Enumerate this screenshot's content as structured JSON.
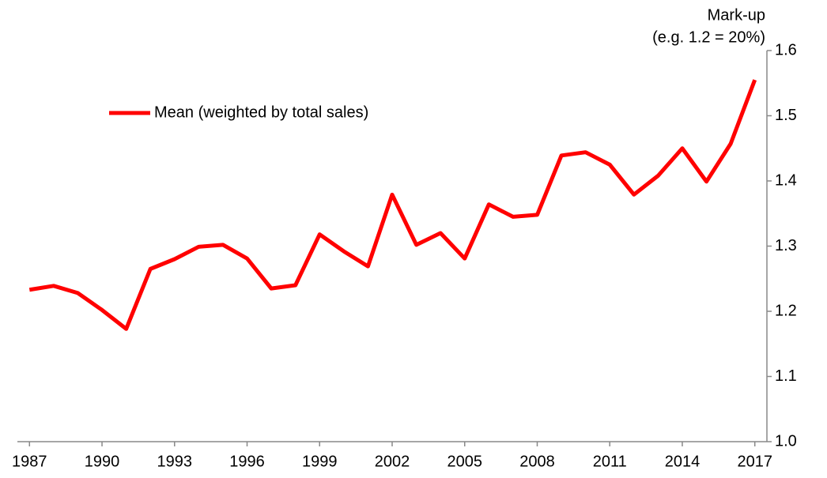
{
  "chart_data": {
    "type": "line",
    "ylabel": [
      "Mark-up",
      "(e.g. 1.2 = 20%)"
    ],
    "x": [
      1987,
      1988,
      1989,
      1990,
      1991,
      1992,
      1993,
      1994,
      1995,
      1996,
      1997,
      1998,
      1999,
      2000,
      2001,
      2002,
      2003,
      2004,
      2005,
      2006,
      2007,
      2008,
      2009,
      2010,
      2011,
      2012,
      2013,
      2014,
      2015,
      2016,
      2017
    ],
    "series": [
      {
        "name": "Mean (weighted by total sales)",
        "color": "#ff0000",
        "values": [
          1.233,
          1.239,
          1.228,
          1.202,
          1.173,
          1.265,
          1.28,
          1.299,
          1.302,
          1.281,
          1.235,
          1.24,
          1.318,
          1.292,
          1.269,
          1.379,
          1.302,
          1.32,
          1.281,
          1.364,
          1.345,
          1.348,
          1.439,
          1.444,
          1.425,
          1.379,
          1.408,
          1.45,
          1.399,
          1.457,
          1.555
        ]
      }
    ],
    "xlim": [
      1986.5,
      2017.5
    ],
    "xticks": [
      1987,
      1990,
      1993,
      1996,
      1999,
      2002,
      2005,
      2008,
      2011,
      2014,
      2017
    ],
    "ylim": [
      1.0,
      1.6
    ],
    "yticks": [
      {
        "value": 1,
        "label": "1.0"
      },
      1.1,
      1.2,
      1.3,
      1.4,
      1.5,
      1.6
    ],
    "y_axis_side": "right",
    "legend": "upper left",
    "grid": false
  }
}
